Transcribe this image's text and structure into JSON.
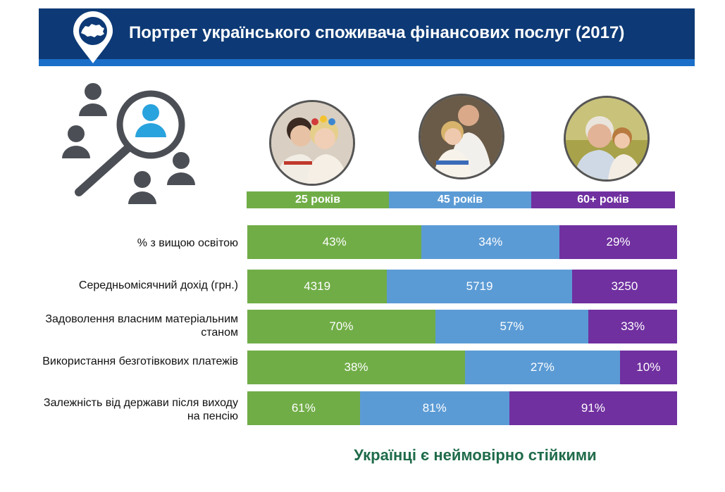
{
  "header": {
    "title": "Портрет українського споживача фінансових послуг (2017)"
  },
  "icons": {
    "logo": "map-pin-ukraine-icon",
    "illustration": "people-search-magnifier-icon"
  },
  "colors": {
    "young": "#70ad47",
    "middle": "#5b9bd5",
    "senior": "#7030a0",
    "header": "#0d3a76",
    "footer": "#1f6b4a"
  },
  "age_groups": [
    {
      "label": "25 років"
    },
    {
      "label": "45 років"
    },
    {
      "label": "60+ років"
    }
  ],
  "rows": [
    {
      "label": "% з вищою освітою",
      "values": [
        "43%",
        "34%",
        "29%"
      ]
    },
    {
      "label": "Середньомісячний дохід (грн.)",
      "values": [
        "4319",
        "5719",
        "3250"
      ]
    },
    {
      "label": "Задоволення власним матеріальним станом",
      "values": [
        "70%",
        "57%",
        "33%"
      ]
    },
    {
      "label": "Використання безготівкових платежів",
      "values": [
        "38%",
        "27%",
        "10%"
      ]
    },
    {
      "label": "Залежність від держави після виходу на пенсію",
      "values": [
        "61%",
        "81%",
        "91%"
      ]
    }
  ],
  "chart_data": {
    "type": "bar",
    "stacked": "normalized",
    "categories": [
      "% з вищою освітою",
      "Середньомісячний дохід (грн.)",
      "Задоволення власним матеріальним станом",
      "Використання безготівкових платежів",
      "Залежність від держави після виходу на пенсію"
    ],
    "series": [
      {
        "name": "25 років",
        "values": [
          43,
          4319,
          70,
          38,
          61
        ]
      },
      {
        "name": "45 років",
        "values": [
          34,
          5719,
          57,
          27,
          81
        ]
      },
      {
        "name": "60+ років",
        "values": [
          29,
          3250,
          33,
          10,
          91
        ]
      }
    ]
  },
  "footer": {
    "text": "Українці є неймовірно стійкими"
  }
}
